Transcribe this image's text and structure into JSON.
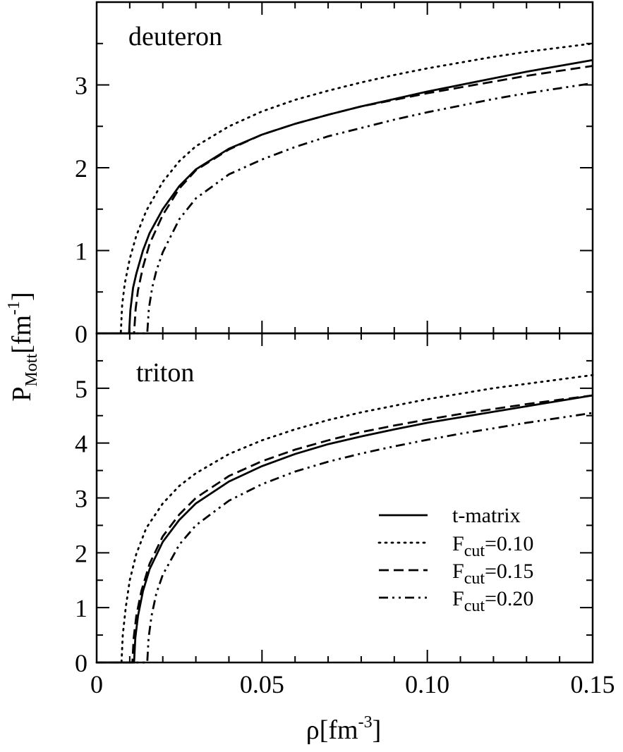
{
  "chart_data": [
    {
      "type": "line",
      "panel_label": "deuteron",
      "xlabel": "ρ[fm^-3]",
      "ylabel": "P_Mott[fm^-1]",
      "xlim": [
        0,
        0.15
      ],
      "ylim": [
        0,
        4
      ],
      "x_tick_labels": [
        "0",
        "0.05",
        "0.10",
        "0.15"
      ],
      "y_tick_labels": [
        "0",
        "1",
        "2",
        "3"
      ],
      "grid": false,
      "series": [
        {
          "key": "tmatrix",
          "threshold": 0.0098,
          "x": [
            0.0098,
            0.0102,
            0.011,
            0.012,
            0.014,
            0.016,
            0.02,
            0.025,
            0.03,
            0.04,
            0.05,
            0.06,
            0.07,
            0.08,
            0.09,
            0.1,
            0.11,
            0.12,
            0.13,
            0.14,
            0.15
          ],
          "y": [
            0,
            0.28,
            0.55,
            0.72,
            1.0,
            1.21,
            1.5,
            1.78,
            1.98,
            2.23,
            2.4,
            2.53,
            2.64,
            2.74,
            2.83,
            2.92,
            3.0,
            3.08,
            3.16,
            3.23,
            3.3
          ]
        },
        {
          "key": "f010",
          "threshold": 0.0073,
          "x": [
            0.0073,
            0.0077,
            0.0085,
            0.01,
            0.012,
            0.015,
            0.02,
            0.025,
            0.03,
            0.04,
            0.05,
            0.06,
            0.07,
            0.08,
            0.09,
            0.1,
            0.11,
            0.12,
            0.13,
            0.14,
            0.15
          ],
          "y": [
            0,
            0.34,
            0.6,
            0.9,
            1.18,
            1.48,
            1.83,
            2.08,
            2.26,
            2.5,
            2.68,
            2.82,
            2.93,
            3.03,
            3.12,
            3.2,
            3.27,
            3.34,
            3.4,
            3.45,
            3.5
          ]
        },
        {
          "key": "f015",
          "threshold": 0.0113,
          "x": [
            0.0113,
            0.0118,
            0.0125,
            0.014,
            0.016,
            0.02,
            0.025,
            0.03,
            0.04,
            0.05,
            0.06,
            0.07,
            0.08,
            0.09,
            0.1,
            0.11,
            0.12,
            0.13,
            0.14,
            0.15
          ],
          "y": [
            0,
            0.3,
            0.52,
            0.8,
            1.08,
            1.43,
            1.75,
            1.97,
            2.22,
            2.4,
            2.53,
            2.64,
            2.74,
            2.82,
            2.9,
            2.97,
            3.04,
            3.11,
            3.17,
            3.23
          ]
        },
        {
          "key": "f020",
          "threshold": 0.0153,
          "x": [
            0.0153,
            0.0158,
            0.0168,
            0.018,
            0.02,
            0.025,
            0.03,
            0.04,
            0.05,
            0.06,
            0.07,
            0.08,
            0.09,
            0.1,
            0.11,
            0.12,
            0.13,
            0.14,
            0.15
          ],
          "y": [
            0,
            0.3,
            0.55,
            0.75,
            0.98,
            1.38,
            1.63,
            1.92,
            2.1,
            2.25,
            2.38,
            2.48,
            2.58,
            2.67,
            2.75,
            2.83,
            2.9,
            2.96,
            3.02
          ]
        }
      ]
    },
    {
      "type": "line",
      "panel_label": "triton",
      "xlabel": "ρ[fm^-3]",
      "ylabel": "P_Mott[fm^-1]",
      "xlim": [
        0,
        0.15
      ],
      "ylim": [
        0,
        6
      ],
      "x_tick_labels": [
        "0",
        "0.05",
        "0.10",
        "0.15"
      ],
      "y_tick_labels": [
        "0",
        "1",
        "2",
        "3",
        "4",
        "5"
      ],
      "grid": false,
      "legend_position": "bottom-right",
      "series": [
        {
          "key": "tmatrix",
          "name": "t-matrix",
          "threshold": 0.0113,
          "x": [
            0.0113,
            0.0117,
            0.0125,
            0.014,
            0.016,
            0.02,
            0.025,
            0.03,
            0.04,
            0.05,
            0.06,
            0.07,
            0.08,
            0.09,
            0.1,
            0.11,
            0.12,
            0.13,
            0.14,
            0.15
          ],
          "y": [
            0,
            0.45,
            0.85,
            1.3,
            1.7,
            2.2,
            2.6,
            2.9,
            3.3,
            3.58,
            3.8,
            3.98,
            4.12,
            4.25,
            4.37,
            4.47,
            4.57,
            4.67,
            4.77,
            4.87
          ]
        },
        {
          "key": "f010",
          "name": "F_cut=0.10",
          "threshold": 0.0075,
          "x": [
            0.0075,
            0.0079,
            0.0088,
            0.01,
            0.012,
            0.015,
            0.02,
            0.025,
            0.03,
            0.04,
            0.05,
            0.06,
            0.07,
            0.08,
            0.09,
            0.1,
            0.11,
            0.12,
            0.13,
            0.14,
            0.15
          ],
          "y": [
            0,
            0.5,
            1.0,
            1.5,
            1.98,
            2.45,
            2.9,
            3.22,
            3.45,
            3.8,
            4.05,
            4.25,
            4.42,
            4.56,
            4.68,
            4.8,
            4.9,
            5.0,
            5.08,
            5.16,
            5.24
          ]
        },
        {
          "key": "f015",
          "name": "F_cut=0.15",
          "threshold": 0.0108,
          "x": [
            0.0108,
            0.0112,
            0.012,
            0.0135,
            0.016,
            0.02,
            0.025,
            0.03,
            0.04,
            0.05,
            0.06,
            0.07,
            0.08,
            0.09,
            0.1,
            0.11,
            0.12,
            0.13,
            0.14,
            0.15
          ],
          "y": [
            0,
            0.45,
            0.85,
            1.3,
            1.8,
            2.3,
            2.7,
            3.0,
            3.4,
            3.67,
            3.88,
            4.05,
            4.2,
            4.32,
            4.43,
            4.53,
            4.62,
            4.71,
            4.79,
            4.87
          ]
        },
        {
          "key": "f020",
          "name": "F_cut=0.20",
          "threshold": 0.0153,
          "x": [
            0.0153,
            0.0157,
            0.0166,
            0.018,
            0.02,
            0.025,
            0.03,
            0.04,
            0.05,
            0.06,
            0.07,
            0.08,
            0.09,
            0.1,
            0.11,
            0.12,
            0.13,
            0.14,
            0.15
          ],
          "y": [
            0,
            0.45,
            0.85,
            1.25,
            1.6,
            2.15,
            2.5,
            2.95,
            3.25,
            3.48,
            3.66,
            3.81,
            3.94,
            4.06,
            4.17,
            4.27,
            4.37,
            4.46,
            4.55
          ]
        }
      ]
    }
  ],
  "legend": [
    {
      "key": "tmatrix",
      "label": "t-matrix",
      "style": "solid"
    },
    {
      "key": "f010",
      "label_main": "F",
      "label_sub": "cut",
      "label_rest": "=0.10",
      "style": "dotted"
    },
    {
      "key": "f015",
      "label_main": "F",
      "label_sub": "cut",
      "label_rest": "=0.15",
      "style": "dashed"
    },
    {
      "key": "f020",
      "label_main": "F",
      "label_sub": "cut",
      "label_rest": "=0.20",
      "style": "dash-dot-dot"
    }
  ],
  "axis_labels": {
    "y_main": "P",
    "y_sub": "Mott",
    "y_rest": "[fm",
    "y_sup": "-1",
    "y_close": "]",
    "x_main": "ρ[fm",
    "x_sup": "-3",
    "x_close": "]"
  }
}
